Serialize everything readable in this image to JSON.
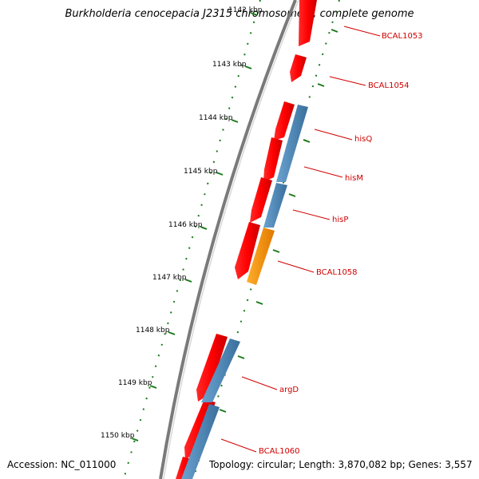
{
  "title": "Burkholderia cenocepacia J2315 chromosome 1, complete genome",
  "footer": {
    "accession": "Accession: NC_011000",
    "summary": "Topology: circular; Length: 3,870,082 bp; Genes: 3,557"
  },
  "colors": {
    "backbone": "#7a7a7a",
    "gene_forward": "#ff1a1a",
    "gene_reverse": "#4a86b8",
    "gene_highlight": "#ff9000",
    "label": "#d00000",
    "ticks": "#1a7a1a"
  },
  "ticks": [
    {
      "label": "1142 kbp"
    },
    {
      "label": "1143 kbp"
    },
    {
      "label": "1144 kbp"
    },
    {
      "label": "1145 kbp"
    },
    {
      "label": "1146 kbp"
    },
    {
      "label": "1147 kbp"
    },
    {
      "label": "1148 kbp"
    },
    {
      "label": "1149 kbp"
    },
    {
      "label": "1150 kbp"
    }
  ],
  "gene_labels": [
    {
      "label": "BCAL1053"
    },
    {
      "label": "BCAL1054"
    },
    {
      "label": "hisQ"
    },
    {
      "label": "hisM"
    },
    {
      "label": "hisP"
    },
    {
      "label": "BCAL1058"
    },
    {
      "label": "argD"
    },
    {
      "label": "BCAL1060"
    }
  ]
}
